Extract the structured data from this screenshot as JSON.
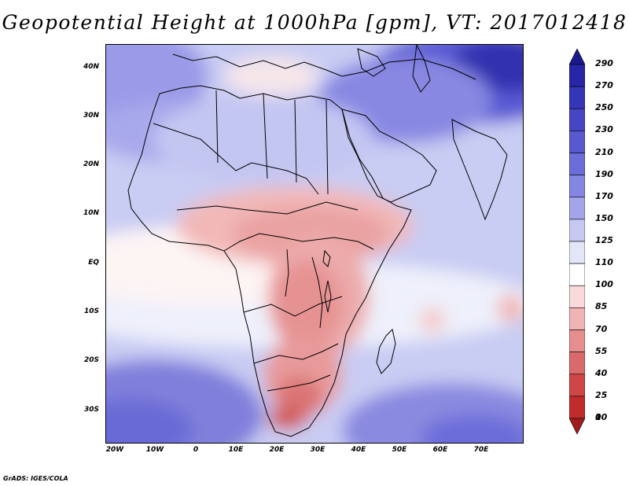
{
  "title": "Geopotential Height at 1000hPa [gpm], VT: 2017012418",
  "credit": "GrADS: IGES/COLA",
  "map": {
    "lat_labels": [
      "40N",
      "30N",
      "20N",
      "10N",
      "EQ",
      "10S",
      "20S",
      "30S"
    ],
    "lon_labels": [
      "20W",
      "10W",
      "0",
      "10E",
      "20E",
      "30E",
      "40E",
      "50E",
      "60E",
      "70E"
    ],
    "coastline_color": "#000000"
  },
  "colorbar": {
    "labels": [
      "290",
      "270",
      "250",
      "230",
      "210",
      "190",
      "170",
      "150",
      "125",
      "110",
      "100",
      "85",
      "70",
      "55",
      "40",
      "25",
      "10",
      "0"
    ],
    "colors": [
      "#1b1a8c",
      "#2626a6",
      "#3535b8",
      "#4646c4",
      "#5858d0",
      "#6d6dda",
      "#8585e2",
      "#a4a4ea",
      "#c6c8f2",
      "#e4e6f8",
      "#ffffff",
      "#f9d9d9",
      "#f1b4b4",
      "#e68e8e",
      "#da6a6a",
      "#cf4646",
      "#c02b2b",
      "#a01c1c"
    ]
  }
}
